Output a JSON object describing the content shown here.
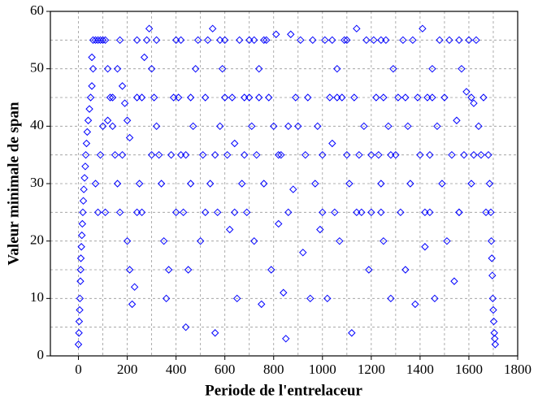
{
  "chart_data": {
    "type": "scatter",
    "xlabel": "Periode de l'entrelaceur",
    "ylabel": "Valeur minimale de span",
    "xlim": [
      -115,
      1800
    ],
    "ylim": [
      0,
      60
    ],
    "xticks": [
      0,
      200,
      400,
      600,
      800,
      1000,
      1200,
      1400,
      1600,
      1800
    ],
    "yticks": [
      0,
      10,
      20,
      30,
      40,
      50,
      60
    ],
    "xminorticks": [
      100,
      300,
      500,
      700,
      900,
      1100,
      1300,
      1500,
      1700
    ],
    "yminorticks": [
      5,
      15,
      25,
      35,
      45,
      55
    ],
    "grid": true,
    "marker": "diamond",
    "series": [
      {
        "color": "#0000ff",
        "x": [
          0,
          2,
          3,
          5,
          6,
          8,
          9,
          10,
          12,
          14,
          16,
          18,
          20,
          22,
          25,
          28,
          30,
          33,
          36,
          40,
          45,
          50,
          55,
          60,
          55,
          60,
          70,
          80,
          90,
          100,
          110,
          120,
          130,
          140,
          150,
          160,
          170,
          110,
          80,
          70,
          90,
          100,
          120,
          140,
          160,
          170,
          180,
          190,
          200,
          210,
          200,
          210,
          220,
          230,
          240,
          250,
          260,
          270,
          280,
          290,
          300,
          310,
          320,
          330,
          340,
          350,
          360,
          370,
          380,
          390,
          400,
          410,
          420,
          430,
          440,
          450,
          460,
          470,
          480,
          490,
          500,
          510,
          520,
          530,
          540,
          550,
          560,
          570,
          580,
          590,
          600,
          610,
          620,
          630,
          640,
          650,
          660,
          670,
          680,
          690,
          700,
          710,
          720,
          730,
          740,
          750,
          760,
          770,
          780,
          790,
          800,
          810,
          820,
          830,
          840,
          850,
          860,
          870,
          880,
          890,
          900,
          910,
          920,
          930,
          940,
          950,
          960,
          970,
          980,
          990,
          1000,
          1010,
          1020,
          1030,
          1040,
          1050,
          1060,
          1070,
          1080,
          1090,
          1100,
          1110,
          1120,
          1130,
          1140,
          1150,
          1160,
          1170,
          1180,
          1190,
          1200,
          1210,
          1220,
          1230,
          1240,
          1250,
          1260,
          1270,
          1280,
          1290,
          1300,
          1310,
          1320,
          1330,
          1340,
          1350,
          1360,
          1370,
          1380,
          1390,
          1400,
          1410,
          1420,
          1430,
          1440,
          1450,
          1460,
          1470,
          1480,
          1490,
          1500,
          1510,
          1520,
          1530,
          1540,
          1550,
          1560,
          1570,
          1580,
          1590,
          1600,
          1610,
          1620,
          1630,
          1640,
          1650,
          1660,
          1670,
          1680,
          1685,
          1690,
          1692,
          1694,
          1696,
          1698,
          1700,
          1702,
          1704,
          1706,
          1708,
          240,
          320,
          420,
          580,
          720,
          760,
          1040,
          1100,
          1240,
          1560,
          240,
          460,
          600,
          740,
          1060,
          1250,
          1340,
          1450,
          1610,
          700,
          180,
          300,
          440,
          560,
          680,
          820,
          1200,
          1280,
          1440,
          1620,
          260,
          400,
          520,
          640,
          860,
          1000,
          1140,
          1240,
          1420,
          1560
        ],
        "values": [
          2,
          4,
          6,
          8,
          10,
          13,
          15,
          17,
          19,
          21,
          23,
          25,
          27,
          29,
          31,
          33,
          35,
          37,
          39,
          41,
          43,
          45,
          47,
          50,
          52,
          55,
          55,
          55,
          55,
          55,
          55,
          50,
          45,
          40,
          35,
          30,
          25,
          25,
          25,
          30,
          35,
          40,
          41,
          45,
          50,
          55,
          47,
          44,
          41,
          38,
          20,
          15,
          9,
          12,
          25,
          30,
          45,
          52,
          55,
          57,
          50,
          45,
          40,
          35,
          30,
          20,
          10,
          15,
          35,
          45,
          55,
          45,
          35,
          25,
          5,
          15,
          30,
          40,
          50,
          55,
          20,
          35,
          45,
          55,
          30,
          57,
          4,
          25,
          40,
          50,
          55,
          35,
          22,
          45,
          37,
          10,
          55,
          30,
          45,
          25,
          55,
          40,
          20,
          35,
          50,
          9,
          30,
          55,
          45,
          15,
          40,
          56,
          23,
          35,
          11,
          3,
          40,
          56,
          29,
          45,
          40,
          55,
          18,
          35,
          45,
          10,
          55,
          30,
          40,
          22,
          35,
          55,
          10,
          45,
          37,
          25,
          50,
          20,
          45,
          55,
          35,
          30,
          4,
          45,
          57,
          35,
          25,
          40,
          55,
          15,
          25,
          55,
          45,
          35,
          30,
          20,
          55,
          40,
          10,
          50,
          35,
          45,
          25,
          55,
          15,
          40,
          30,
          55,
          9,
          45,
          35,
          57,
          19,
          45,
          25,
          50,
          10,
          40,
          55,
          30,
          45,
          20,
          55,
          35,
          13,
          41,
          25,
          50,
          35,
          46,
          55,
          30,
          44,
          55,
          40,
          35,
          45,
          25,
          35,
          30,
          25,
          20,
          17,
          14,
          10,
          8,
          6,
          4,
          3,
          2,
          55,
          55,
          55,
          55,
          55,
          55,
          55,
          55,
          55,
          55,
          45,
          45,
          45,
          45,
          45,
          45,
          45,
          45,
          45,
          45,
          35,
          35,
          35,
          35,
          35,
          35,
          35,
          35,
          35,
          35,
          25,
          25,
          25,
          25,
          25,
          25,
          25,
          25,
          25,
          25
        ]
      }
    ]
  }
}
